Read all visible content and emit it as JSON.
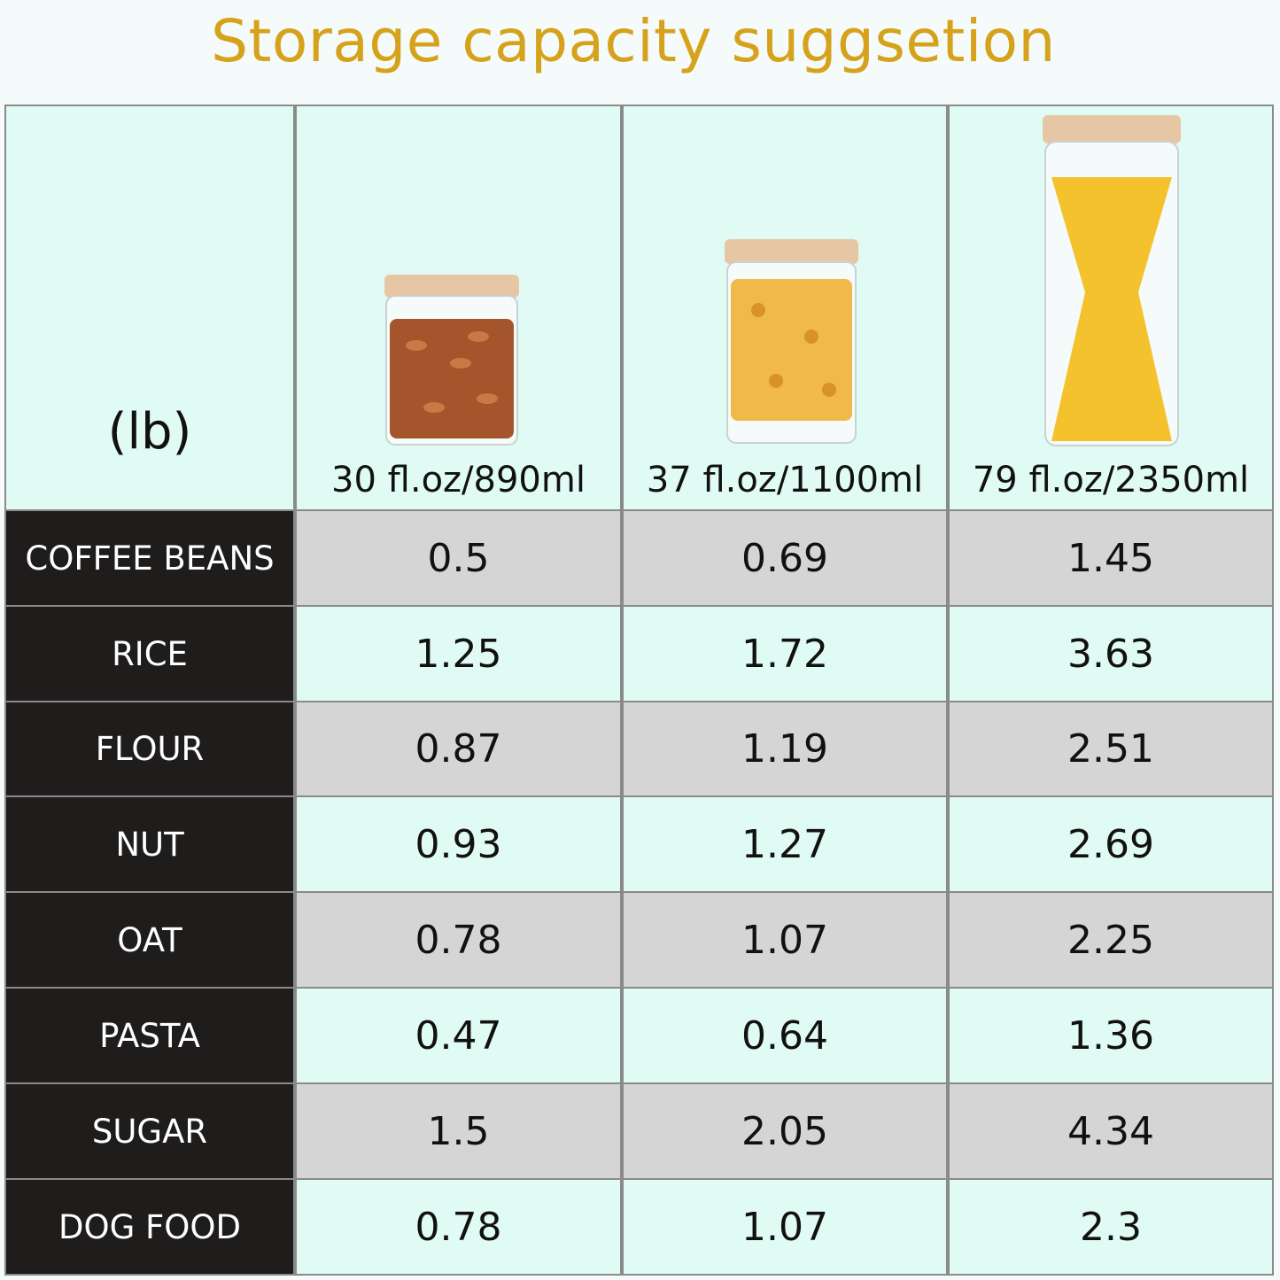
{
  "title": "Storage capacity suggsetion",
  "colors": {
    "title": "#d6a21c",
    "label_bg": "#1f1c1c",
    "row_gray": "#d5d5d5",
    "row_mint": "#e0fbf4"
  },
  "chart_data": {
    "type": "table",
    "unit_label": "(lb)",
    "columns": [
      "30 fl.oz/890ml",
      "37 fl.oz/1100ml",
      "79 fl.oz/2350ml"
    ],
    "column_images": [
      "jar-with-almonds",
      "jar-with-farfalle-pasta",
      "tall-jar-with-spaghetti"
    ],
    "rows": [
      {
        "label": "COFFEE BEANS",
        "values": [
          "0.5",
          "0.69",
          "1.45"
        ]
      },
      {
        "label": "RICE",
        "values": [
          "1.25",
          "1.72",
          "3.63"
        ]
      },
      {
        "label": "FLOUR",
        "values": [
          "0.87",
          "1.19",
          "2.51"
        ]
      },
      {
        "label": "NUT",
        "values": [
          "0.93",
          "1.27",
          "2.69"
        ]
      },
      {
        "label": "OAT",
        "values": [
          "0.78",
          "1.07",
          "2.25"
        ]
      },
      {
        "label": "PASTA",
        "values": [
          "0.47",
          "0.64",
          "1.36"
        ]
      },
      {
        "label": "SUGAR",
        "values": [
          "1.5",
          "2.05",
          "4.34"
        ]
      },
      {
        "label": "DOG FOOD",
        "values": [
          "0.78",
          "1.07",
          "2.3"
        ]
      }
    ]
  }
}
